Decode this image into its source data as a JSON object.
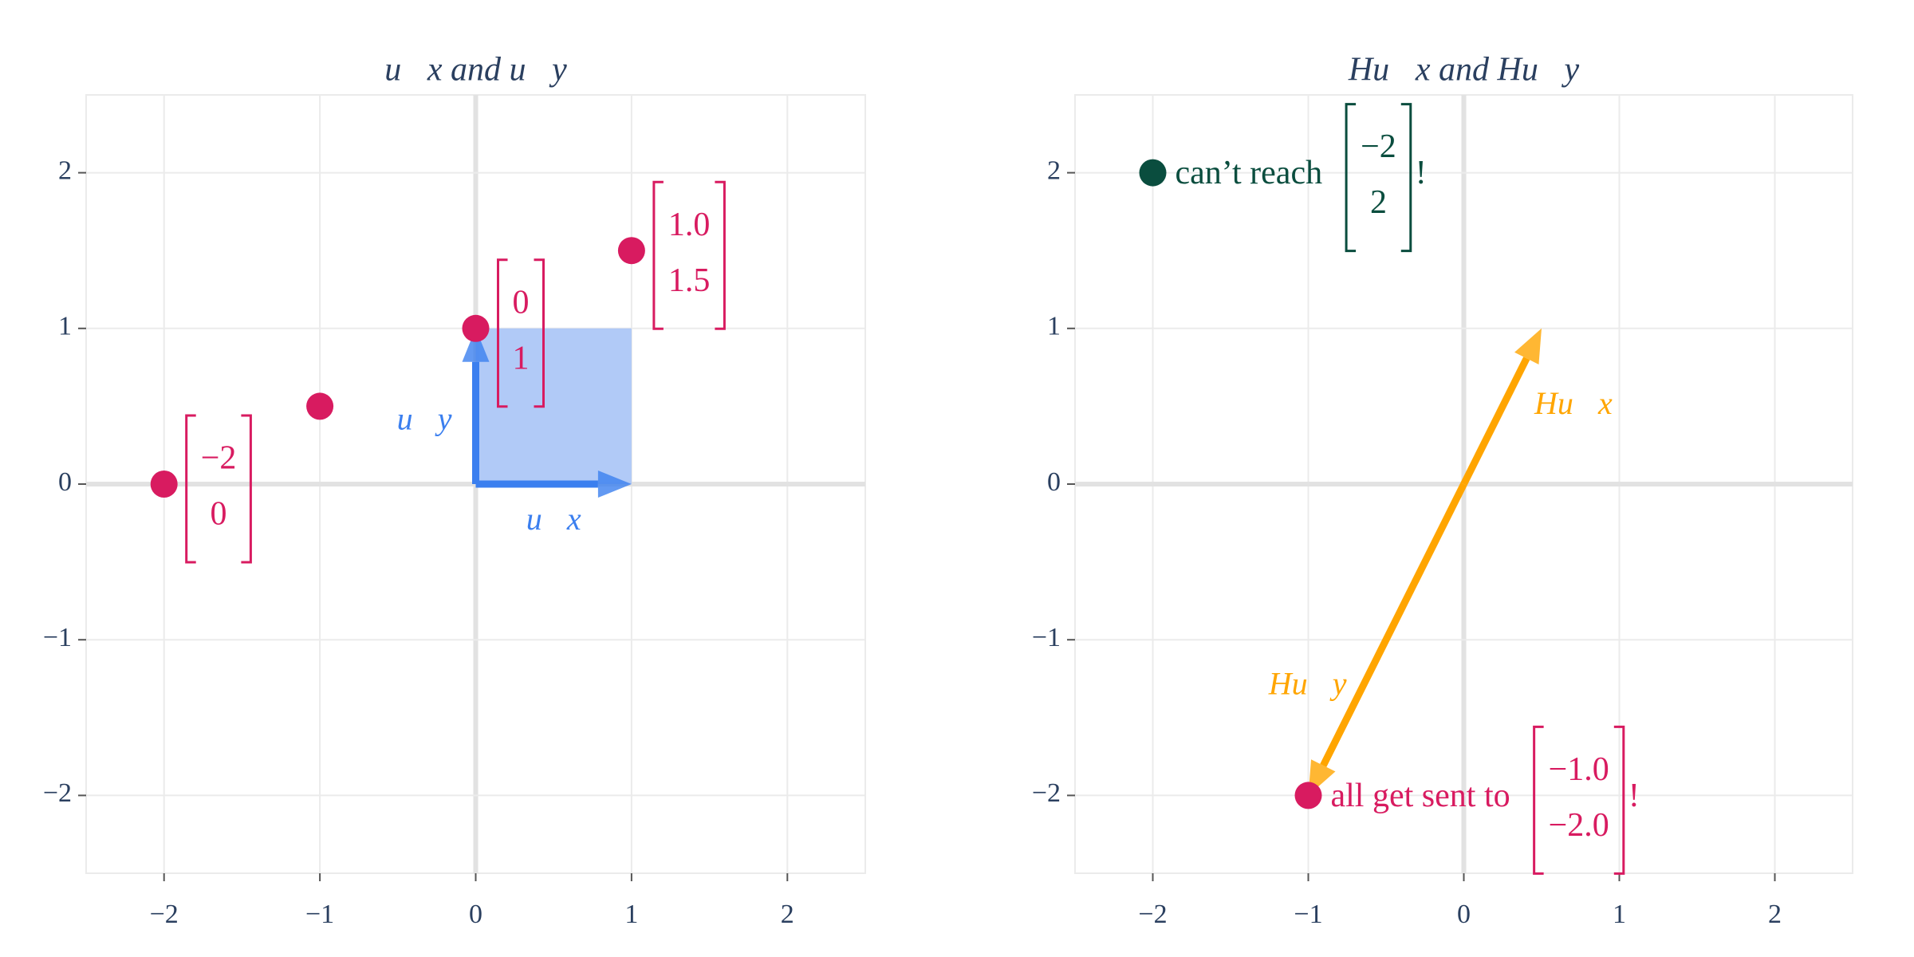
{
  "chart_data": [
    {
      "type": "scatter",
      "title": "u⃗x and u⃗y",
      "xlim": [
        -2.5,
        2.5
      ],
      "ylim": [
        -2.5,
        2.5
      ],
      "xticks": [
        {
          "value": -2,
          "label": "−2"
        },
        {
          "value": -1,
          "label": "−1"
        },
        0,
        1,
        2
      ],
      "yticks": [
        {
          "value": -2,
          "label": "−2"
        },
        {
          "value": -1,
          "label": "−1"
        },
        0,
        1,
        2
      ],
      "grid": true,
      "span_fill": "#a9c4f6",
      "vectors": [
        {
          "name": "u⃗x",
          "x": 1,
          "y": 0,
          "color": "#3b7fef"
        },
        {
          "name": "u⃗y",
          "x": 0,
          "y": 1,
          "color": "#3b7fef"
        }
      ],
      "points": [
        {
          "x": -2,
          "y": 0,
          "color": "#d81b60",
          "matrix": [
            "−2",
            "0"
          ]
        },
        {
          "x": -1,
          "y": 0.5,
          "color": "#d81b60"
        },
        {
          "x": 0,
          "y": 1,
          "color": "#d81b60",
          "matrix": [
            "0",
            "1"
          ]
        },
        {
          "x": 1,
          "y": 1.5,
          "color": "#d81b60",
          "matrix": [
            "1.0",
            "1.5"
          ]
        }
      ]
    },
    {
      "type": "scatter",
      "title": "Hu⃗x and Hu⃗y",
      "xlim": [
        -2.5,
        2.5
      ],
      "ylim": [
        -2.5,
        2.5
      ],
      "xticks": [
        {
          "value": -2,
          "label": "−2"
        },
        {
          "value": -1,
          "label": "−1"
        },
        0,
        1,
        2
      ],
      "yticks": [
        {
          "value": -2,
          "label": "−2"
        },
        {
          "value": -1,
          "label": "−1"
        },
        0,
        1,
        2
      ],
      "grid": true,
      "vectors": [
        {
          "name": "Hu⃗x",
          "x": 0.5,
          "y": 1,
          "color": "#ffa500"
        },
        {
          "name": "Hu⃗y",
          "x": -1,
          "y": -2,
          "color": "#ffa500"
        }
      ],
      "points": [
        {
          "x": -2,
          "y": 2,
          "color": "#0a4d3e",
          "label": "can’t reach",
          "matrix": [
            "−2",
            "2"
          ],
          "suffix": "!"
        },
        {
          "x": -1,
          "y": -2,
          "color": "#d81b60",
          "label": "all get sent to",
          "matrix": [
            "−1.0",
            "−2.0"
          ],
          "suffix": "!"
        }
      ]
    }
  ]
}
